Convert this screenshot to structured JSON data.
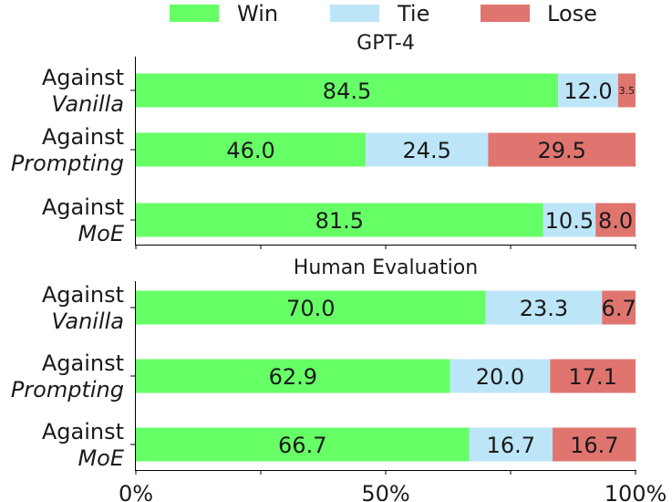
{
  "legend": {
    "items": [
      {
        "label": "Win",
        "color": "#66ff66"
      },
      {
        "label": "Tie",
        "color": "#bde5f8"
      },
      {
        "label": "Lose",
        "color": "#e0756f"
      }
    ]
  },
  "chart_data": [
    {
      "type": "bar",
      "orientation": "horizontal",
      "stacked": true,
      "title": "GPT-4",
      "categories": [
        {
          "line1": "Against",
          "line2": "Vanilla"
        },
        {
          "line1": "Against",
          "line2": "Prompting"
        },
        {
          "line1": "Against",
          "line2": "MoE"
        }
      ],
      "series": [
        {
          "name": "Win",
          "values": [
            84.5,
            46.0,
            81.5
          ]
        },
        {
          "name": "Tie",
          "values": [
            12.0,
            24.5,
            10.5
          ]
        },
        {
          "name": "Lose",
          "values": [
            3.5,
            29.5,
            8.0
          ]
        }
      ],
      "xlim": [
        0,
        100
      ],
      "x_ticks": [],
      "legend_position": "top"
    },
    {
      "type": "bar",
      "orientation": "horizontal",
      "stacked": true,
      "title": "Human Evaluation",
      "categories": [
        {
          "line1": "Against",
          "line2": "Vanilla"
        },
        {
          "line1": "Against",
          "line2": "Prompting"
        },
        {
          "line1": "Against",
          "line2": "MoE"
        }
      ],
      "series": [
        {
          "name": "Win",
          "values": [
            70.0,
            62.9,
            66.7
          ]
        },
        {
          "name": "Tie",
          "values": [
            23.3,
            20.0,
            16.7
          ]
        },
        {
          "name": "Lose",
          "values": [
            6.7,
            17.1,
            16.7
          ]
        }
      ],
      "xlim": [
        0,
        100
      ],
      "x_ticks": [
        "0%",
        "50%",
        "100%"
      ]
    }
  ]
}
